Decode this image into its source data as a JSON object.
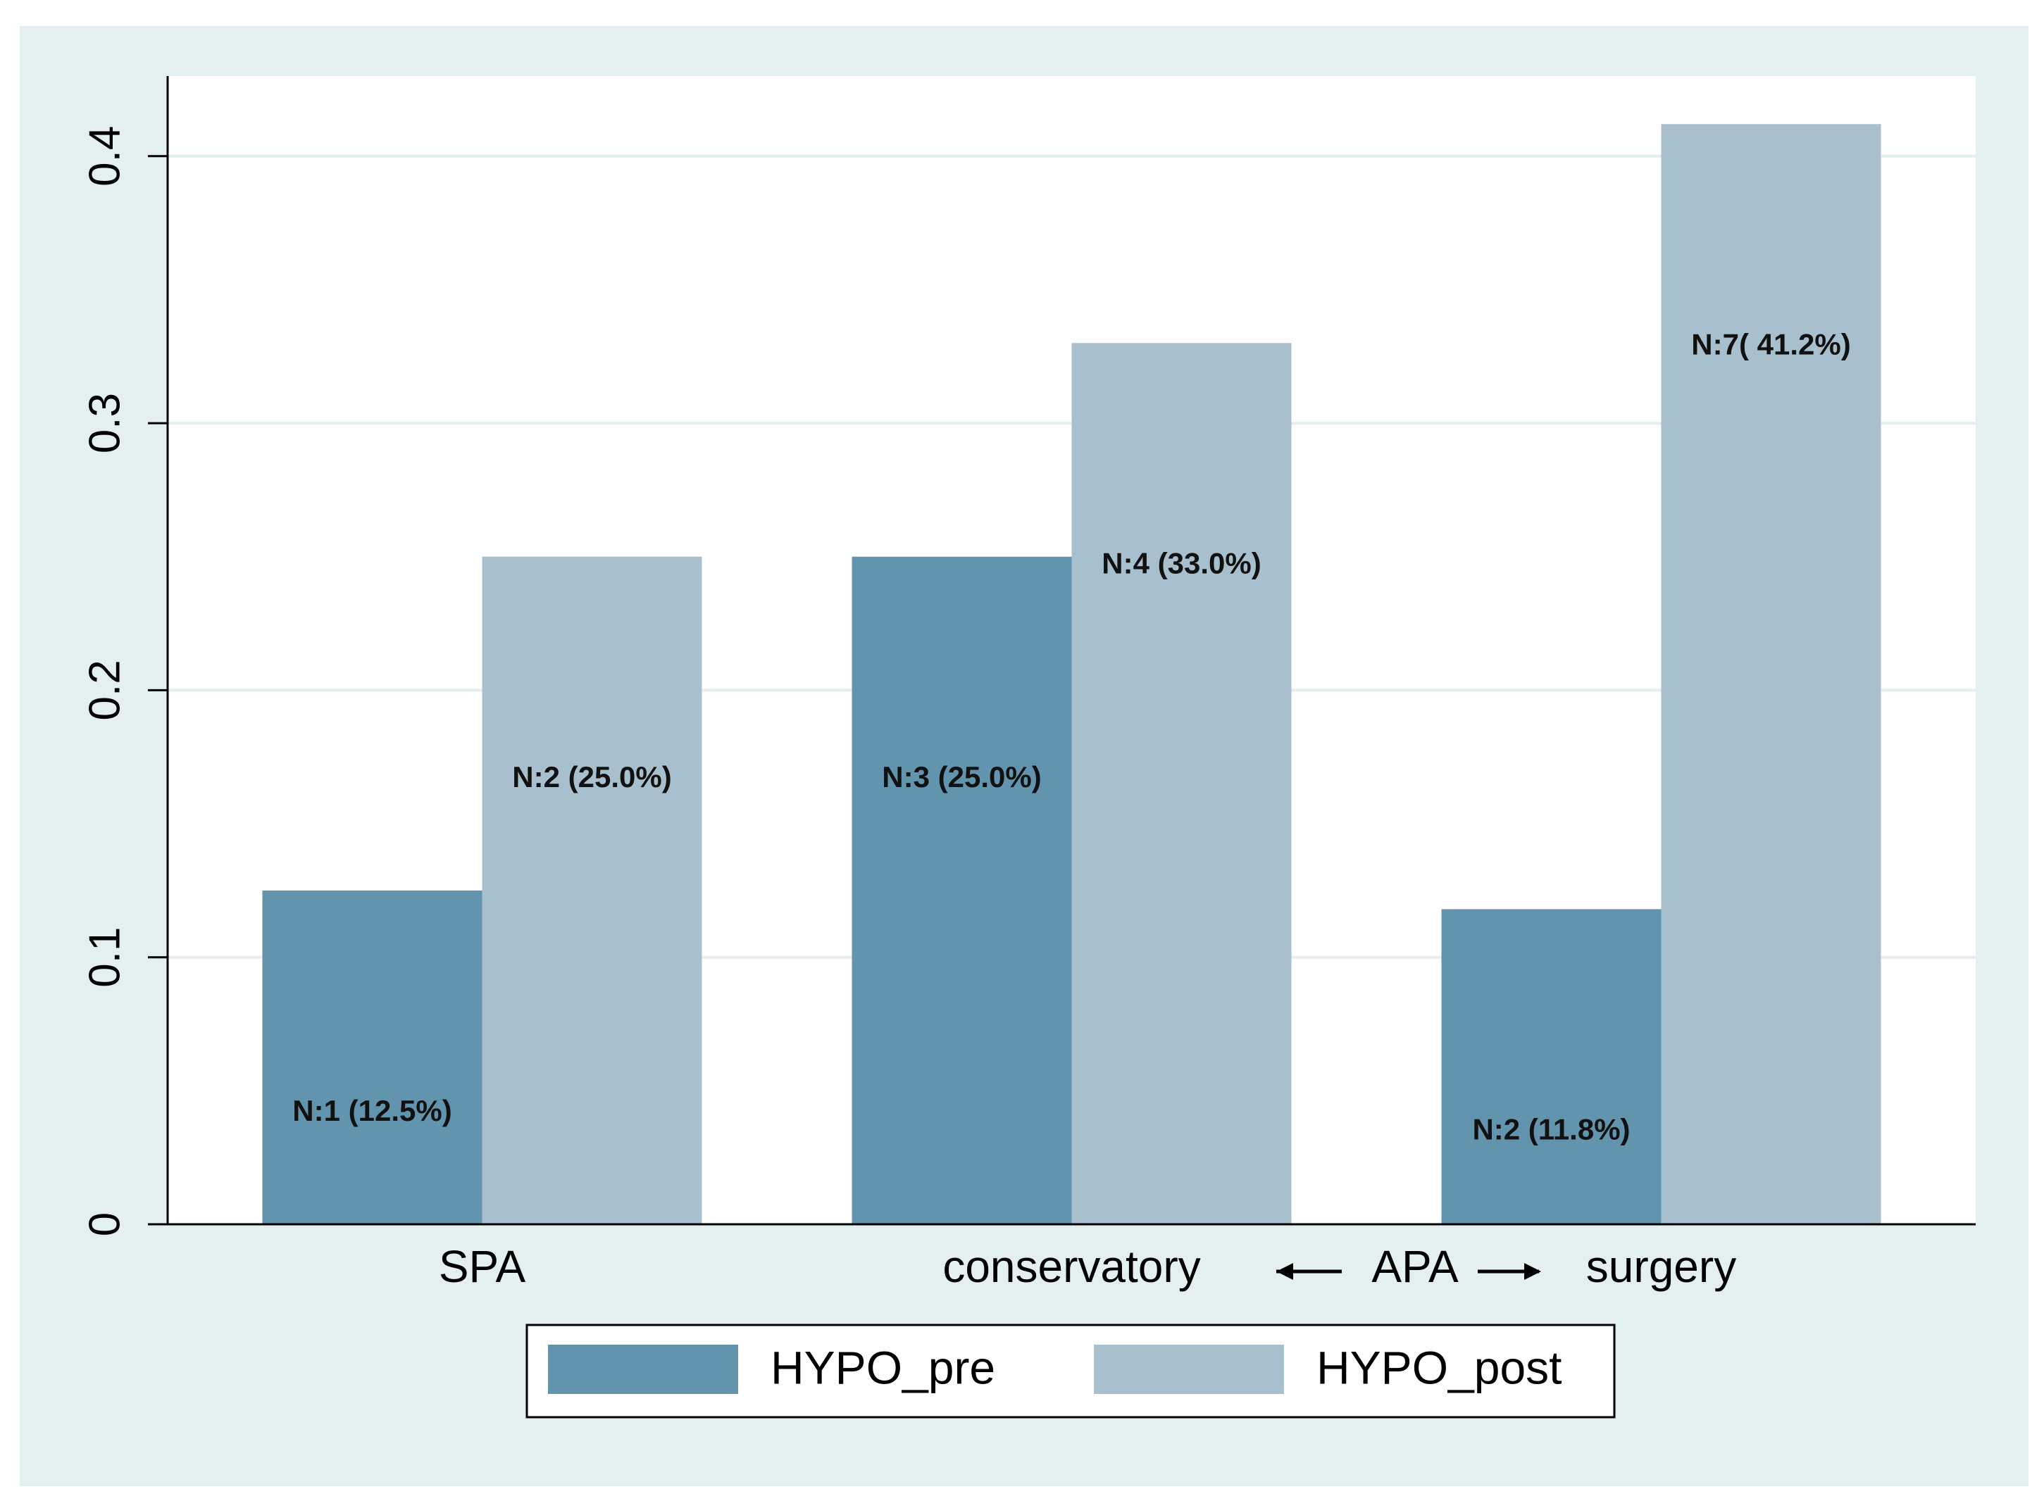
{
  "chart_data": {
    "type": "bar",
    "categories": [
      "SPA",
      "conservatory",
      "surgery"
    ],
    "annotation": "APA",
    "series": [
      {
        "name": "HYPO_pre",
        "color": "#6394ae",
        "values": [
          0.125,
          0.25,
          0.118
        ],
        "value_labels": [
          "N:1 (12.5%)",
          "N:3 (25.0%)",
          "N:2 (11.8%)"
        ]
      },
      {
        "name": "HYPO_post",
        "color": "#a8bfcd",
        "values": [
          0.25,
          0.33,
          0.412
        ],
        "value_labels": [
          "N:2 (25.0%)",
          "N:4 (33.0%)",
          "N:7( 41.2%)"
        ]
      }
    ],
    "ylim": [
      0,
      0.43
    ],
    "yticks": [
      0,
      0.1,
      0.2,
      0.3,
      0.4
    ],
    "grid": true
  }
}
